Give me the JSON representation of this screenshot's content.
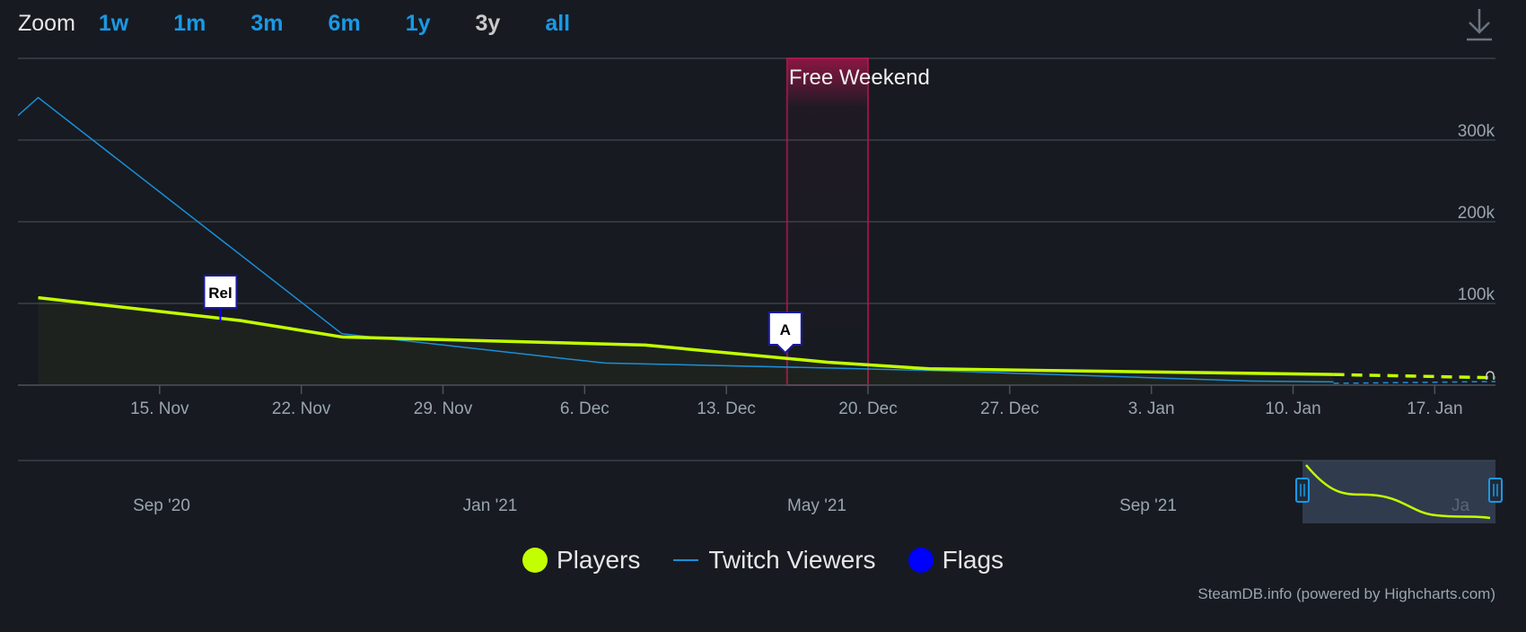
{
  "zoom": {
    "label": "Zoom",
    "buttons": [
      "1w",
      "1m",
      "3m",
      "6m",
      "1y",
      "3y",
      "all"
    ],
    "active": "3y"
  },
  "toolbar": {
    "download_icon": "download-icon"
  },
  "colors": {
    "background": "#171a21",
    "players": "#c3ff00",
    "twitch": "#1a8fd6",
    "flags": "#0000ff",
    "band": "#b3154f",
    "grid": "#3a4149"
  },
  "chart_data": {
    "type": "line",
    "x_unit": "date",
    "y_ticks": [
      "100k",
      "200k",
      "300k"
    ],
    "y_tick_values": [
      100000,
      200000,
      300000
    ],
    "ylim": [
      0,
      400000
    ],
    "xlim": [
      "2020-11-08",
      "2021-01-20"
    ],
    "x_ticks": [
      {
        "date": "2020-11-15",
        "label": "15. Nov"
      },
      {
        "date": "2020-11-22",
        "label": "22. Nov"
      },
      {
        "date": "2020-11-29",
        "label": "29. Nov"
      },
      {
        "date": "2020-12-06",
        "label": "6. Dec"
      },
      {
        "date": "2020-12-13",
        "label": "13. Dec"
      },
      {
        "date": "2020-12-20",
        "label": "20. Dec"
      },
      {
        "date": "2020-12-27",
        "label": "27. Dec"
      },
      {
        "date": "2021-01-03",
        "label": "3. Jan"
      },
      {
        "date": "2021-01-10",
        "label": "10. Jan"
      },
      {
        "date": "2021-01-17",
        "label": "17. Jan"
      }
    ],
    "series": [
      {
        "name": "Players",
        "points": [
          [
            "2020-11-09",
            107000
          ],
          [
            "2020-11-19",
            79000
          ],
          [
            "2020-11-24",
            59000
          ],
          [
            "2020-12-09",
            49000
          ],
          [
            "2020-12-18",
            28000
          ],
          [
            "2020-12-23",
            20000
          ],
          [
            "2021-01-12",
            13000
          ]
        ],
        "projection": [
          [
            "2021-01-12",
            13000
          ],
          [
            "2021-01-20",
            9000
          ]
        ]
      },
      {
        "name": "Twitch Viewers",
        "points": [
          [
            "2020-11-08",
            330000
          ],
          [
            "2020-11-09",
            352000
          ],
          [
            "2020-11-24",
            63000
          ],
          [
            "2020-12-07",
            27000
          ],
          [
            "2020-12-18",
            21000
          ],
          [
            "2020-12-23",
            18000
          ],
          [
            "2021-01-08",
            5000
          ],
          [
            "2021-01-12",
            4000
          ]
        ]
      },
      {
        "name": "Flags",
        "flags": [
          {
            "date": "2020-11-18",
            "label": "Rel"
          },
          {
            "date": "2020-12-16",
            "label": "A"
          }
        ]
      }
    ],
    "plot_bands": [
      {
        "from": "2020-12-16",
        "to": "2020-12-20",
        "label": "Free Weekend"
      }
    ],
    "navigator": {
      "x_labels": [
        "Sep '20",
        "Jan '21",
        "May '21",
        "Sep '21",
        "Ja"
      ]
    },
    "legend": [
      "Players",
      "Twitch Viewers",
      "Flags"
    ],
    "legend_position": "bottom-center"
  },
  "credits": "SteamDB.info (powered by Highcharts.com)"
}
